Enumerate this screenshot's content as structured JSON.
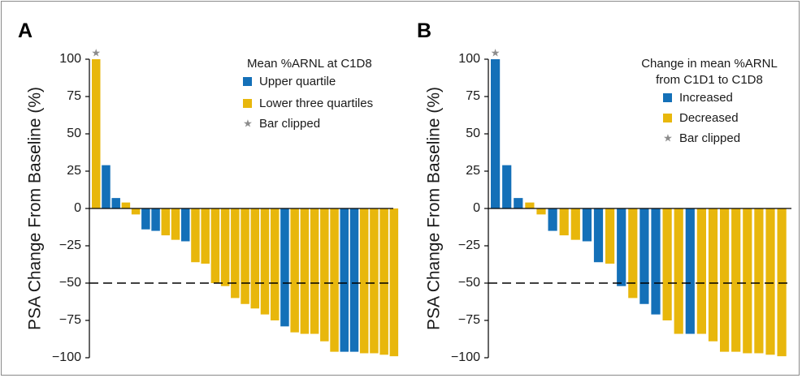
{
  "colors": {
    "blue": "#1470b8",
    "yellow": "#e8b70c",
    "star": "#8c8c8c"
  },
  "chart_data": [
    {
      "panel": "A",
      "type": "bar",
      "ylabel": "PSA Change From Baseline (%)",
      "ylim": [
        -100,
        100
      ],
      "yticks": [
        100,
        75,
        50,
        25,
        0,
        -25,
        -50,
        -75,
        -100
      ],
      "ytick_labels": [
        "100",
        "75",
        "50",
        "25",
        "0",
        "−25",
        "−50",
        "−75",
        "−100"
      ],
      "reference_line": -50,
      "legend": {
        "title": [
          "Mean %ARNL at C1D8"
        ],
        "items": [
          {
            "label": "Upper quartile",
            "color": "blue",
            "marker": "square"
          },
          {
            "label": "Lower three quartiles",
            "color": "yellow",
            "marker": "square"
          },
          {
            "label": "Bar clipped",
            "color": "star",
            "marker": "star"
          }
        ]
      },
      "star_symbol": "★",
      "bars": [
        {
          "value": 100,
          "group": "yellow",
          "clipped": true
        },
        {
          "value": 29,
          "group": "blue"
        },
        {
          "value": 7,
          "group": "blue"
        },
        {
          "value": 4,
          "group": "yellow"
        },
        {
          "value": -4,
          "group": "yellow"
        },
        {
          "value": -14,
          "group": "blue"
        },
        {
          "value": -15,
          "group": "blue"
        },
        {
          "value": -18,
          "group": "yellow"
        },
        {
          "value": -21,
          "group": "yellow"
        },
        {
          "value": -22,
          "group": "blue"
        },
        {
          "value": -36,
          "group": "yellow"
        },
        {
          "value": -37,
          "group": "yellow"
        },
        {
          "value": -50,
          "group": "yellow"
        },
        {
          "value": -52,
          "group": "yellow"
        },
        {
          "value": -60,
          "group": "yellow"
        },
        {
          "value": -64,
          "group": "yellow"
        },
        {
          "value": -67,
          "group": "yellow"
        },
        {
          "value": -71,
          "group": "yellow"
        },
        {
          "value": -75,
          "group": "yellow"
        },
        {
          "value": -79,
          "group": "blue"
        },
        {
          "value": -83,
          "group": "yellow"
        },
        {
          "value": -84,
          "group": "yellow"
        },
        {
          "value": -84,
          "group": "yellow"
        },
        {
          "value": -89,
          "group": "yellow"
        },
        {
          "value": -96,
          "group": "yellow"
        },
        {
          "value": -96,
          "group": "blue"
        },
        {
          "value": -96,
          "group": "blue"
        },
        {
          "value": -97,
          "group": "yellow"
        },
        {
          "value": -97,
          "group": "yellow"
        },
        {
          "value": -98,
          "group": "yellow"
        },
        {
          "value": -99,
          "group": "yellow"
        }
      ]
    },
    {
      "panel": "B",
      "type": "bar",
      "ylabel": "PSA Change From Baseline (%)",
      "ylim": [
        -100,
        100
      ],
      "yticks": [
        100,
        75,
        50,
        25,
        0,
        -25,
        -50,
        -75,
        -100
      ],
      "ytick_labels": [
        "100",
        "75",
        "50",
        "25",
        "0",
        "−25",
        "−50",
        "−75",
        "−100"
      ],
      "reference_line": -50,
      "legend": {
        "title": [
          "Change in mean %ARNL",
          "from C1D1 to C1D8"
        ],
        "items": [
          {
            "label": "Increased",
            "color": "blue",
            "marker": "square"
          },
          {
            "label": "Decreased",
            "color": "yellow",
            "marker": "square"
          },
          {
            "label": "Bar clipped",
            "color": "star",
            "marker": "star"
          }
        ]
      },
      "star_symbol": "★",
      "bars": [
        {
          "value": 100,
          "group": "blue",
          "clipped": true
        },
        {
          "value": 29,
          "group": "blue"
        },
        {
          "value": 7,
          "group": "blue"
        },
        {
          "value": 4,
          "group": "yellow"
        },
        {
          "value": -4,
          "group": "yellow"
        },
        {
          "value": -15,
          "group": "blue"
        },
        {
          "value": -18,
          "group": "yellow"
        },
        {
          "value": -21,
          "group": "yellow"
        },
        {
          "value": -22,
          "group": "blue"
        },
        {
          "value": -36,
          "group": "blue"
        },
        {
          "value": -37,
          "group": "yellow"
        },
        {
          "value": -52,
          "group": "blue"
        },
        {
          "value": -60,
          "group": "yellow"
        },
        {
          "value": -64,
          "group": "blue"
        },
        {
          "value": -71,
          "group": "blue"
        },
        {
          "value": -75,
          "group": "yellow"
        },
        {
          "value": -84,
          "group": "yellow"
        },
        {
          "value": -84,
          "group": "blue"
        },
        {
          "value": -84,
          "group": "yellow"
        },
        {
          "value": -89,
          "group": "yellow"
        },
        {
          "value": -96,
          "group": "yellow"
        },
        {
          "value": -96,
          "group": "yellow"
        },
        {
          "value": -97,
          "group": "yellow"
        },
        {
          "value": -97,
          "group": "yellow"
        },
        {
          "value": -98,
          "group": "yellow"
        },
        {
          "value": -99,
          "group": "yellow"
        }
      ]
    }
  ]
}
